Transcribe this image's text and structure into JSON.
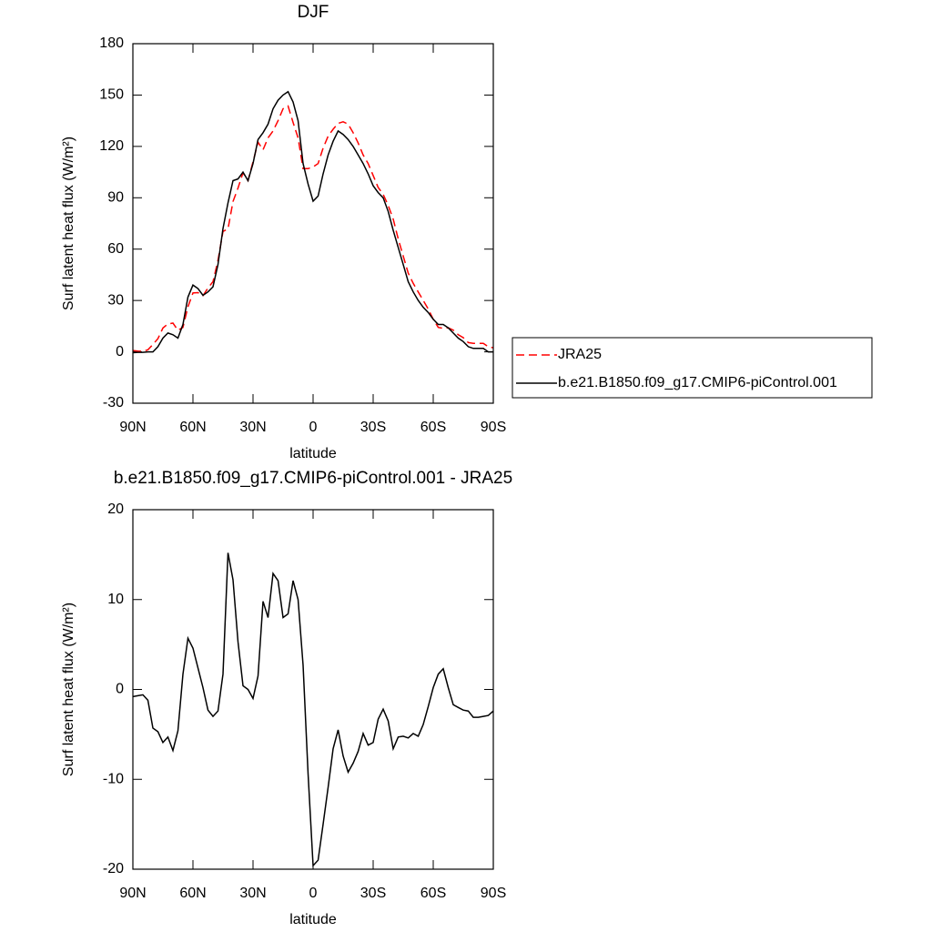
{
  "chart_data": [
    {
      "type": "line",
      "title": "DJF",
      "x_label": "latitude",
      "y_label": "Surf latent heat flux (W/m²)",
      "x": [
        90,
        87.5,
        85,
        82.5,
        80,
        77.5,
        75,
        72.5,
        70,
        67.5,
        65,
        62.5,
        60,
        57.5,
        55,
        52.5,
        50,
        47.5,
        45,
        42.5,
        40,
        37.5,
        35,
        32.5,
        30,
        27.5,
        25,
        22.5,
        20,
        17.5,
        15,
        12.5,
        10,
        7.5,
        5,
        2.5,
        0,
        -2.5,
        -5,
        -7.5,
        -10,
        -12.5,
        -15,
        -17.5,
        -20,
        -22.5,
        -25,
        -27.5,
        -30,
        -32.5,
        -35,
        -37.5,
        -40,
        -42.5,
        -45,
        -47.5,
        -50,
        -52.5,
        -55,
        -57.5,
        -60,
        -62.5,
        -65,
        -67.5,
        -70,
        -72.5,
        -75,
        -77.5,
        -80,
        -82.5,
        -85,
        -87.5,
        -90
      ],
      "series": [
        {
          "name": "JRA25",
          "color": "#ff0000",
          "style": "dashed",
          "values": [
            0.8,
            0.4,
            0.3,
            1.2,
            4.3,
            7.7,
            13.9,
            16.3,
            16.8,
            12.6,
            14.3,
            26.3,
            34.4,
            34.6,
            32.8,
            37.3,
            41,
            53.4,
            70.3,
            71.8,
            87.8,
            95.7,
            104.6,
            100,
            111,
            122.5,
            118,
            125,
            129,
            135,
            142,
            143.6,
            134,
            125,
            107,
            107,
            108,
            110,
            119,
            126,
            130,
            133.5,
            134.4,
            133,
            128,
            122,
            115,
            110,
            103,
            96,
            92,
            85.5,
            77.6,
            66,
            56,
            46,
            40,
            35,
            30,
            25,
            19,
            14.3,
            13.7,
            14,
            12.7,
            10,
            8.3,
            5.4,
            5,
            5,
            5,
            3,
            2.4
          ]
        },
        {
          "name": "b.e21.B1850.f09_g17.CMIP6-piControl.001",
          "color": "#000000",
          "style": "solid",
          "values": [
            -0.5,
            -0.3,
            -0.3,
            0,
            0,
            3,
            8,
            11,
            10,
            8,
            16,
            32,
            39,
            37,
            33,
            35,
            38,
            51,
            72,
            87,
            100,
            101,
            105,
            100,
            110,
            124,
            128,
            133,
            142,
            147,
            150,
            152,
            146,
            135,
            110,
            98,
            88,
            91,
            104,
            115,
            123,
            129,
            127,
            124,
            120,
            115,
            110,
            104,
            97,
            93,
            90,
            82,
            71,
            61,
            51,
            41,
            35,
            30,
            26,
            23,
            19,
            16,
            16,
            14,
            11,
            8,
            6,
            3,
            2,
            2,
            2,
            0,
            0
          ]
        }
      ],
      "xlim": [
        90,
        -90
      ],
      "xticks": [
        {
          "value": 90,
          "label": "90N"
        },
        {
          "value": 60,
          "label": "60N"
        },
        {
          "value": 30,
          "label": "30N"
        },
        0,
        {
          "value": -30,
          "label": "30S"
        },
        {
          "value": -60,
          "label": "60S"
        },
        {
          "value": -90,
          "label": "90S"
        }
      ],
      "ylim": [
        -30,
        180
      ],
      "yticks": [
        -30,
        0,
        30,
        60,
        90,
        120,
        150,
        180
      ],
      "legend": "right"
    },
    {
      "type": "line",
      "title": "b.e21.B1850.f09_g17.CMIP6-piControl.001 - JRA25",
      "x_label": "latitude",
      "y_label": "Surf latent heat flux (W/m²)",
      "x": [
        90,
        87.5,
        85,
        82.5,
        80,
        77.5,
        75,
        72.5,
        70,
        67.5,
        65,
        62.5,
        60,
        57.5,
        55,
        52.5,
        50,
        47.5,
        45,
        42.5,
        40,
        37.5,
        35,
        32.5,
        30,
        27.5,
        25,
        22.5,
        20,
        17.5,
        15,
        12.5,
        10,
        7.5,
        5,
        2.5,
        0,
        -2.5,
        -5,
        -7.5,
        -10,
        -12.5,
        -15,
        -17.5,
        -20,
        -22.5,
        -25,
        -27.5,
        -30,
        -32.5,
        -35,
        -37.5,
        -40,
        -42.5,
        -45,
        -47.5,
        -50,
        -52.5,
        -55,
        -57.5,
        -60,
        -62.5,
        -65,
        -67.5,
        -70,
        -72.5,
        -75,
        -77.5,
        -80,
        -82.5,
        -85,
        -87.5,
        -90
      ],
      "color": "#000000",
      "values": [
        -0.8,
        -0.7,
        -0.6,
        -1.2,
        -4.3,
        -4.7,
        -5.9,
        -5.3,
        -6.8,
        -4.6,
        1.7,
        5.7,
        4.6,
        2.4,
        0.2,
        -2.3,
        -3,
        -2.4,
        1.7,
        15.2,
        12.2,
        5.3,
        0.4,
        0,
        -1,
        1.5,
        9.8,
        8,
        12.9,
        12.1,
        8,
        8.4,
        12.1,
        10,
        2.7,
        -9.4,
        -19.6,
        -19,
        -15,
        -10.9,
        -6.6,
        -4.5,
        -7.4,
        -9.2,
        -8.2,
        -6.9,
        -4.9,
        -6.2,
        -5.9,
        -3.3,
        -2.2,
        -3.5,
        -6.6,
        -5.3,
        -5.2,
        -5.4,
        -4.9,
        -5.2,
        -3.9,
        -1.9,
        0.2,
        1.7,
        2.3,
        0.2,
        -1.7,
        -2,
        -2.3,
        -2.4,
        -3.1,
        -3.1,
        -3,
        -2.9,
        -2.4
      ],
      "xlim": [
        90,
        -90
      ],
      "xticks": [
        {
          "value": 90,
          "label": "90N"
        },
        {
          "value": 60,
          "label": "60N"
        },
        {
          "value": 30,
          "label": "30N"
        },
        0,
        {
          "value": -30,
          "label": "30S"
        },
        {
          "value": -60,
          "label": "60S"
        },
        {
          "value": -90,
          "label": "90S"
        }
      ],
      "ylim": [
        -20,
        20
      ],
      "yticks": [
        -20,
        -10,
        0,
        10,
        20
      ]
    }
  ]
}
